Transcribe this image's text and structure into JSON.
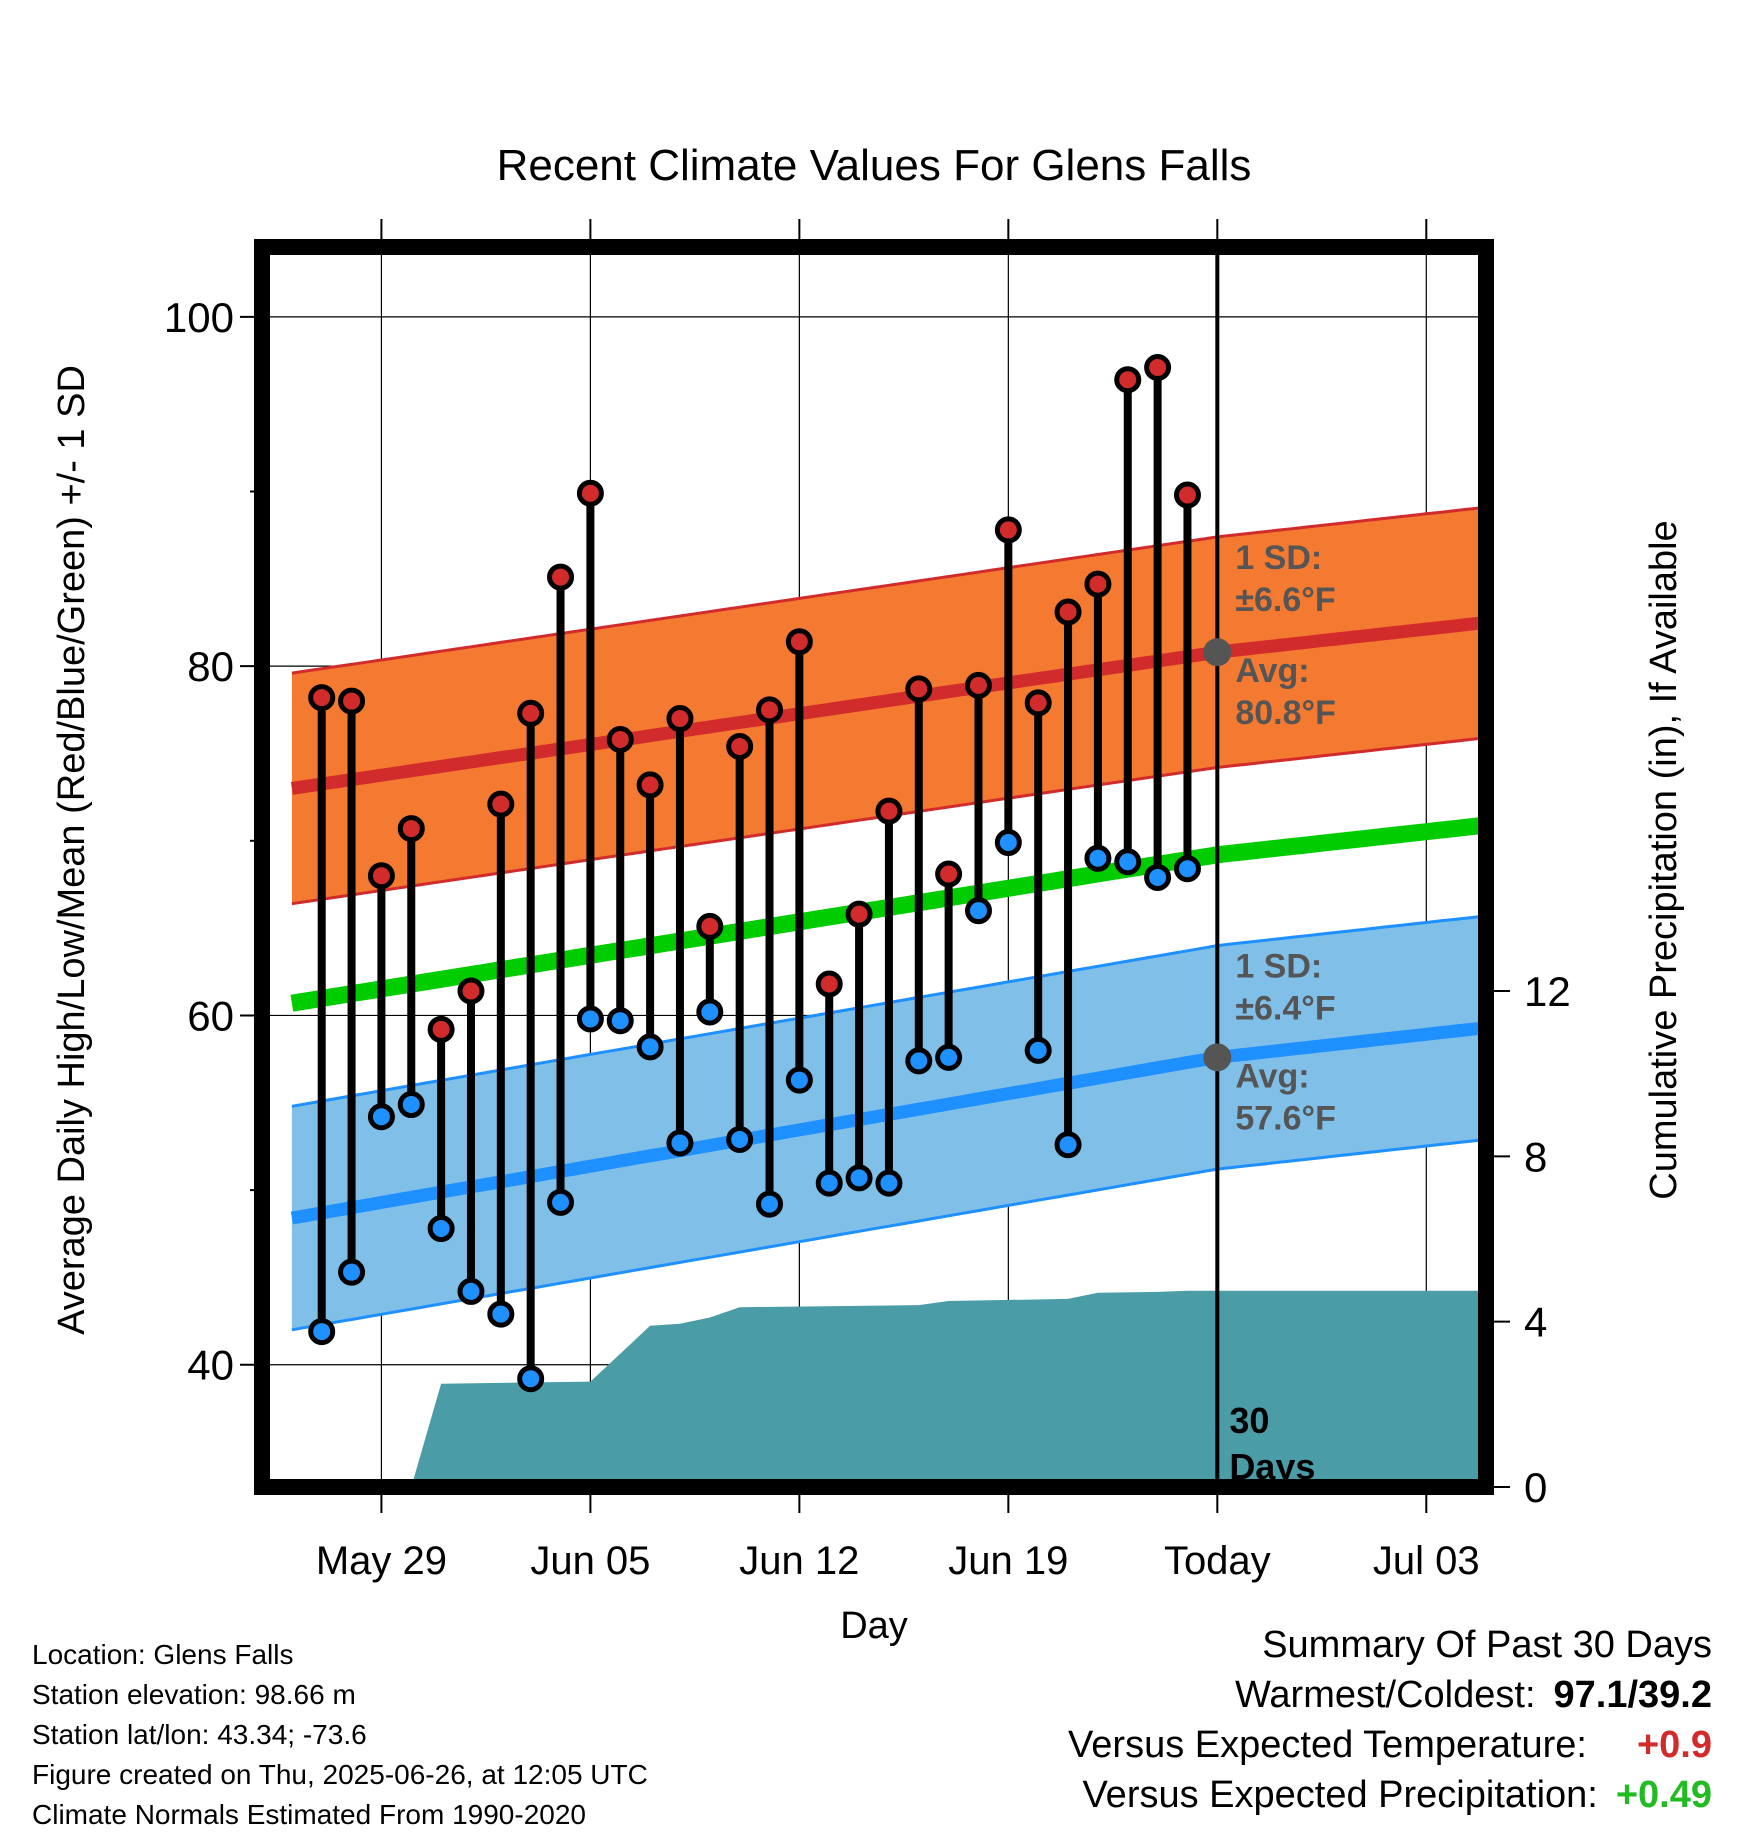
{
  "chart_data": {
    "type": "line",
    "title": "Recent Climate Values For Glens Falls",
    "xlabel": "Day",
    "ylabel": "Average Daily High/Low/Mean (Red/Blue/Green) +/- 1 SD",
    "y2label": "Cumulative Precipitation (in), If Available",
    "x_ticks": [
      "May 29",
      "Jun 05",
      "Jun 12",
      "Jun 19",
      "Today",
      "Jul 03"
    ],
    "x_tick_dates": [
      "2025-05-29",
      "2025-06-05",
      "2025-06-12",
      "2025-06-19",
      "2025-06-26",
      "2025-07-03"
    ],
    "xlim": [
      "2025-05-25",
      "2025-07-05"
    ],
    "ylim": [
      33,
      104
    ],
    "y_ticks": [
      40,
      60,
      80,
      100
    ],
    "y2lim": [
      0,
      30
    ],
    "y2_ticks": [
      0,
      4,
      8,
      12
    ],
    "today": "2025-06-26",
    "today_label": "30 Days",
    "dates": [
      "2025-05-27",
      "2025-05-28",
      "2025-05-29",
      "2025-05-30",
      "2025-05-31",
      "2025-06-01",
      "2025-06-02",
      "2025-06-03",
      "2025-06-04",
      "2025-06-05",
      "2025-06-06",
      "2025-06-07",
      "2025-06-08",
      "2025-06-09",
      "2025-06-10",
      "2025-06-11",
      "2025-06-12",
      "2025-06-13",
      "2025-06-14",
      "2025-06-15",
      "2025-06-16",
      "2025-06-17",
      "2025-06-18",
      "2025-06-19",
      "2025-06-20",
      "2025-06-21",
      "2025-06-22",
      "2025-06-23",
      "2025-06-24",
      "2025-06-25"
    ],
    "daily_high": [
      78.2,
      78.0,
      68.0,
      70.7,
      59.2,
      61.4,
      72.1,
      77.3,
      85.1,
      89.9,
      75.8,
      73.2,
      77.0,
      65.1,
      75.4,
      77.5,
      81.4,
      61.8,
      65.8,
      71.7,
      78.7,
      68.1,
      78.9,
      87.8,
      77.9,
      83.1,
      84.7,
      96.4,
      97.1,
      89.8
    ],
    "daily_low": [
      41.9,
      45.3,
      54.2,
      54.9,
      47.8,
      44.2,
      42.9,
      39.2,
      49.3,
      59.8,
      59.7,
      58.2,
      52.7,
      60.2,
      52.9,
      49.2,
      56.3,
      50.4,
      50.7,
      50.4,
      57.4,
      57.6,
      66.0,
      69.9,
      58.0,
      52.6,
      69.0,
      68.8,
      67.9,
      68.4
    ],
    "normal_high": {
      "dates": [
        "2025-05-26",
        "2025-06-26",
        "2025-07-05"
      ],
      "values": [
        73.0,
        80.8,
        82.5
      ],
      "sd": 6.6
    },
    "normal_low": {
      "dates": [
        "2025-05-26",
        "2025-06-26",
        "2025-07-05"
      ],
      "values": [
        48.4,
        57.6,
        59.3
      ],
      "sd": 6.4
    },
    "normal_mean": {
      "dates": [
        "2025-05-26",
        "2025-06-26",
        "2025-07-05"
      ],
      "values": [
        60.7,
        69.2,
        70.9
      ]
    },
    "cum_precip": {
      "dates": [
        "2025-05-30",
        "2025-05-31",
        "2025-06-05",
        "2025-06-07",
        "2025-06-08",
        "2025-06-09",
        "2025-06-10",
        "2025-06-16",
        "2025-06-17",
        "2025-06-21",
        "2025-06-22",
        "2025-06-24",
        "2025-06-25",
        "2025-06-26",
        "2025-07-05"
      ],
      "values": [
        0,
        2.5,
        2.55,
        3.9,
        3.95,
        4.1,
        4.35,
        4.4,
        4.5,
        4.55,
        4.7,
        4.72,
        4.75,
        4.75,
        4.75
      ]
    },
    "annotations": {
      "high_sd_label": "1 SD:",
      "high_sd_value": "±6.6°F",
      "high_avg_label": "Avg:",
      "high_avg_value": "80.8°F",
      "low_sd_label": "1 SD:",
      "low_sd_value": "±6.4°F",
      "low_avg_label": "Avg:",
      "low_avg_value": "57.6°F"
    },
    "colors": {
      "high_band": "#f47a31",
      "high_line": "#d22b2b",
      "low_band": "#80c0e8",
      "low_line": "#1e90ff",
      "mean_line": "#00cc00",
      "precip": "#4a9ca6",
      "high_dot": "#d22b2b",
      "low_dot": "#1e90ff",
      "avg_dot": "#555555",
      "annotation_text": "#555555"
    }
  },
  "footer": {
    "location": "Location: Glens Falls",
    "elevation": "Station elevation: 98.66 m",
    "latlon": "Station lat/lon: 43.34; -73.6",
    "created": "Figure created on Thu, 2025-06-26, at 12:05 UTC",
    "normals": "Climate Normals Estimated From 1990-2020"
  },
  "summary": {
    "title": "Summary Of Past 30 Days",
    "warm_cold_label": "Warmest/Coldest:",
    "warm_cold_value": "97.1/39.2",
    "temp_label": "Versus Expected Temperature:",
    "temp_value": "+0.9",
    "temp_color": "#d22b2b",
    "precip_label": "Versus Expected Precipitation:",
    "precip_value": "+0.49",
    "precip_color": "#22bb22"
  }
}
